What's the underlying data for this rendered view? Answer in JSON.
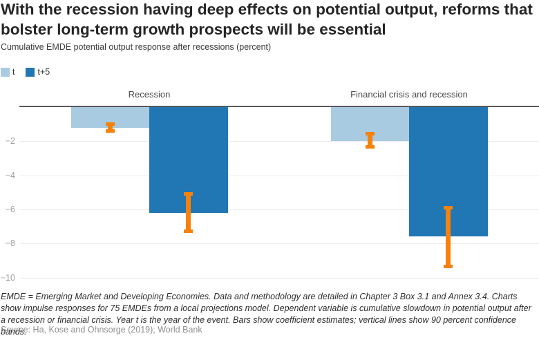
{
  "header": {
    "title_line1": "With the recession having deep effects on potential output, reforms that",
    "title_line2": "bolster long-term growth prospects will be essential",
    "subtitle": "Cumulative EMDE potential output response after recessions (percent)"
  },
  "legend": {
    "items": [
      {
        "label": "t",
        "color": "#A9CBE2"
      },
      {
        "label": "t+5",
        "color": "#2177B3"
      }
    ]
  },
  "chart_data": {
    "type": "bar",
    "title": "Cumulative EMDE potential output response after recessions (percent)",
    "categories": [
      "Recession",
      "Financial crisis and recession"
    ],
    "series": [
      {
        "name": "t",
        "color": "#A9CBE2",
        "values": [
          -1.2,
          -2.0
        ],
        "ci": [
          [
            -1.0,
            -1.4
          ],
          [
            -1.55,
            -2.35
          ]
        ]
      },
      {
        "name": "t+5",
        "color": "#2177B3",
        "values": [
          -6.2,
          -7.6
        ],
        "ci": [
          [
            -5.1,
            -7.3
          ],
          [
            -5.9,
            -9.35
          ]
        ]
      }
    ],
    "error_bar_color": "#F6820C",
    "error_bar_meaning": "90 percent confidence bands",
    "y_ticks": [
      -2,
      -4,
      -6,
      -8,
      -10
    ],
    "y_tick_labels": [
      "−2",
      "−4",
      "−6",
      "−8",
      "−10"
    ],
    "ylim": [
      -10.6,
      0
    ],
    "xlabel": "",
    "ylabel": "",
    "grid": true,
    "legend_position": "top-left"
  },
  "footnote": "EMDE = Emerging Market and Developing Economies. Data and methodology are detailed in Chapter 3 Box 3.1 and Annex 3.4. Charts show impulse responses for 75 EMDEs from a local projections model. Dependent variable is cumulative slowdown in potential output after a recession or financial crisis. Year t is the year of the event. Bars show coefficient estimates; vertical lines show 90 percent confidence bands.",
  "source": "Source: Ha, Kose and Ohnsorge (2019); World Bank"
}
